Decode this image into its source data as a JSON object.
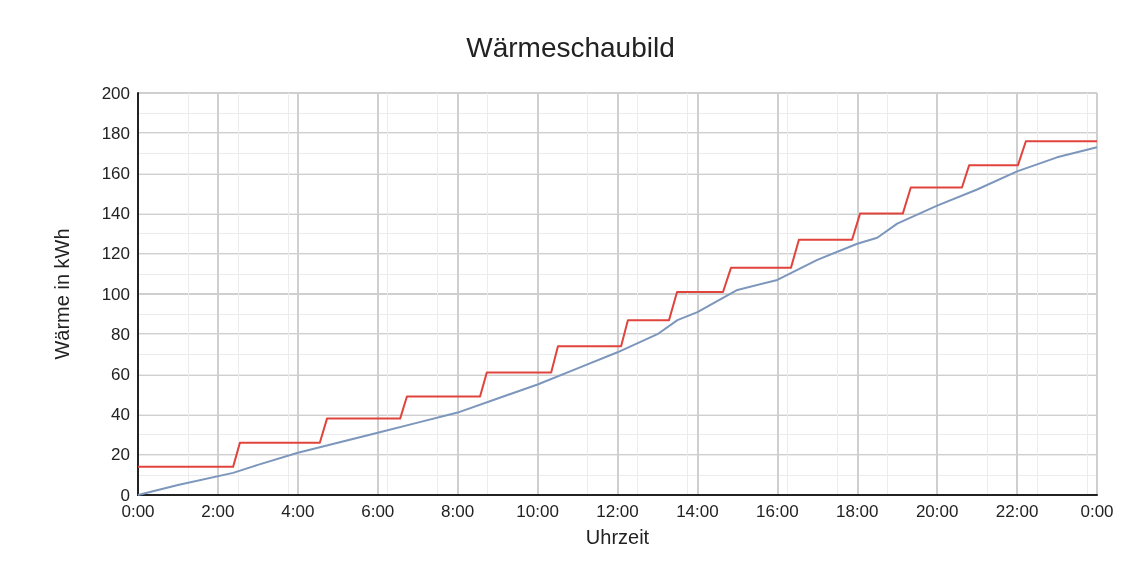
{
  "chart_data": {
    "type": "line",
    "title": "Wärmeschaubild",
    "xlabel": "Uhrzeit",
    "ylabel": "Wärme in kWh",
    "xlim": [
      0,
      24
    ],
    "xticks": [
      {
        "value": 0,
        "label": "0:00"
      },
      {
        "value": 2,
        "label": "2:00"
      },
      {
        "value": 4,
        "label": "4:00"
      },
      {
        "value": 6,
        "label": "6:00"
      },
      {
        "value": 8,
        "label": "8:00"
      },
      {
        "value": 10,
        "label": "10:00"
      },
      {
        "value": 12,
        "label": "12:00"
      },
      {
        "value": 14,
        "label": "14:00"
      },
      {
        "value": 16,
        "label": "16:00"
      },
      {
        "value": 18,
        "label": "18:00"
      },
      {
        "value": 20,
        "label": "20:00"
      },
      {
        "value": 22,
        "label": "22:00"
      },
      {
        "value": 24,
        "label": "0:00"
      }
    ],
    "ylim": [
      0,
      200
    ],
    "yticks": [
      0,
      20,
      40,
      60,
      80,
      100,
      120,
      140,
      160,
      180,
      200
    ],
    "grid": true,
    "marker": "none",
    "line_style": "solid",
    "series": [
      {
        "color": "#e0443c",
        "x": [
          0,
          2.38,
          2.55,
          4.55,
          4.73,
          6.56,
          6.73,
          8.56,
          8.73,
          10.34,
          10.51,
          12.09,
          12.26,
          13.29,
          13.49,
          14.64,
          14.84,
          16.34,
          16.54,
          17.87,
          18.07,
          19.14,
          19.34,
          20.62,
          20.8,
          22.02,
          22.22,
          24
        ],
        "values": [
          14,
          14,
          26,
          26,
          38,
          38,
          49,
          49,
          61,
          61,
          74,
          74,
          87,
          87,
          101,
          101,
          113,
          113,
          127,
          127,
          140,
          140,
          153,
          153,
          164,
          164,
          176,
          176
        ]
      },
      {
        "color": "#7c96bc",
        "x": [
          0,
          1,
          2.38,
          3,
          4,
          5,
          6,
          7,
          8,
          9,
          10,
          11,
          12,
          13,
          13.5,
          14,
          15,
          16,
          17,
          18,
          18.5,
          19,
          20,
          21,
          22,
          23,
          24
        ],
        "values": [
          0,
          5,
          11,
          15,
          21,
          26,
          31,
          36,
          41,
          48,
          55,
          63,
          71,
          80,
          87,
          91,
          102,
          107,
          117,
          125,
          128,
          135,
          144,
          152,
          161,
          168,
          173
        ]
      }
    ]
  }
}
